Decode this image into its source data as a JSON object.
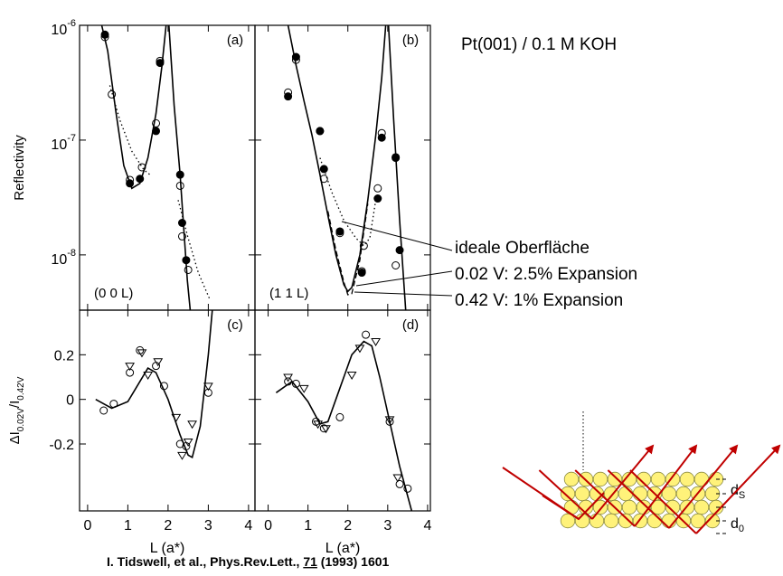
{
  "chart_data": [
    {
      "type": "scatter",
      "panel_label": "(a)",
      "annotation": "(0 0 L)",
      "ylabel": "Reflectivity",
      "yscale": "log",
      "xlim": [
        -0.2,
        4.16
      ],
      "ylim": [
        3.3e-09,
        1e-06
      ],
      "xticks": [
        0,
        1,
        2,
        3,
        4
      ],
      "xtick_labels": false,
      "yticks": [
        {
          "value": 1e-06,
          "label": "10",
          "exponent": "-6"
        },
        {
          "value": 1e-07,
          "label": "10",
          "exponent": "-7"
        },
        {
          "value": 1e-08,
          "label": "10",
          "exponent": "-8"
        }
      ],
      "series": [
        {
          "marker": "circle-open",
          "color": "#000000",
          "x": [
            0.43,
            0.6,
            1.05,
            1.35,
            1.7,
            1.8,
            2.3,
            2.35,
            2.5
          ],
          "values": [
            7.9e-07,
            2.5e-07,
            4.5e-08,
            5.8e-08,
            1.4e-07,
            4.9e-07,
            4e-08,
            1.45e-08,
            7.4e-09
          ]
        },
        {
          "marker": "circle-filled",
          "color": "#000000",
          "x": [
            0.43,
            1.05,
            1.3,
            1.7,
            1.8,
            2.3,
            2.35,
            2.45
          ],
          "values": [
            8.3e-07,
            4.2e-08,
            4.6e-08,
            1.2e-07,
            4.7e-07,
            5e-08,
            1.9e-08,
            9e-09
          ]
        },
        {
          "line": "solid",
          "color": "#000000",
          "x": [
            0.35,
            0.5,
            0.7,
            0.9,
            1.1,
            1.3,
            1.5,
            1.7,
            1.85,
            1.95,
            null,
            2.02,
            2.15,
            2.3,
            2.4,
            2.48,
            2.55
          ],
          "values": [
            1e-06,
            6e-07,
            1.8e-07,
            6e-08,
            3.8e-08,
            4.2e-08,
            7e-08,
            1.7e-07,
            4.5e-07,
            1e-06,
            null,
            1e-06,
            2e-07,
            5e-08,
            1.5e-08,
            6e-09,
            3.3e-09
          ]
        },
        {
          "line": "dotted",
          "color": "#000000",
          "x": [
            0.55,
            0.8,
            1.1,
            1.4,
            1.55,
            null,
            2.25,
            2.5,
            2.75,
            3.05
          ],
          "values": [
            3e-07,
            1.5e-07,
            8e-08,
            5.5e-08,
            5e-08,
            null,
            3e-08,
            1.4e-08,
            7e-09,
            4e-09
          ]
        }
      ]
    },
    {
      "type": "scatter",
      "panel_label": "(b)",
      "annotation": "(1 1 L)",
      "yscale": "log",
      "xlim": [
        -0.33,
        4.07
      ],
      "ylim": [
        3.3e-09,
        1e-06
      ],
      "xticks": [
        0,
        1,
        2,
        3,
        4
      ],
      "xtick_labels": false,
      "yticks": [
        1e-06,
        1e-07,
        1e-08
      ],
      "ytick_labels": false,
      "series": [
        {
          "marker": "circle-open",
          "color": "#000000",
          "x": [
            0.5,
            0.7,
            1.3,
            1.4,
            1.8,
            2.4,
            2.35,
            2.75,
            2.85,
            3.2,
            3.2
          ],
          "values": [
            2.6e-07,
            5e-07,
            1.2e-07,
            4.6e-08,
            1.55e-08,
            1.2e-08,
            7.2e-09,
            3.8e-08,
            1.15e-07,
            7e-08,
            8.1e-09
          ]
        },
        {
          "marker": "circle-filled",
          "color": "#000000",
          "x": [
            0.5,
            0.7,
            1.3,
            1.4,
            1.8,
            2.35,
            2.75,
            2.85,
            3.2,
            3.3
          ],
          "values": [
            2.4e-07,
            5.3e-07,
            1.2e-07,
            5.6e-08,
            1.6e-08,
            7e-09,
            3.1e-08,
            1.05e-07,
            7.1e-08,
            1.1e-08
          ]
        },
        {
          "line": "solid",
          "color": "#000000",
          "x": [
            0.5,
            0.7,
            0.9,
            1.1,
            1.3,
            1.5,
            1.7,
            1.9,
            2.0,
            2.1,
            2.3,
            2.5,
            2.7,
            2.85,
            2.95,
            null,
            3.02,
            3.15,
            3.3,
            3.45
          ],
          "values": [
            1e-06,
            4.5e-07,
            2.2e-07,
            1.1e-07,
            5e-08,
            2.2e-08,
            1e-08,
            5.5e-09,
            4.8e-09,
            5.2e-09,
            1e-08,
            3e-08,
            1.1e-07,
            3.5e-07,
            1e-06,
            null,
            1e-06,
            1.5e-07,
            2e-08,
            3.3e-09
          ]
        },
        {
          "line": "dashed",
          "color": "#000000",
          "x": [
            1.5,
            1.7,
            1.9,
            2.0,
            2.1,
            2.3,
            2.5
          ],
          "values": [
            2.4e-08,
            1.1e-08,
            5.8e-09,
            4.5e-09,
            4.6e-09,
            9e-09,
            2.8e-08
          ]
        },
        {
          "line": "dotted",
          "color": "#000000",
          "x": [
            1.3,
            1.6,
            1.9,
            2.2,
            2.4,
            2.55,
            2.7
          ],
          "values": [
            7e-08,
            3.5e-08,
            2e-08,
            1.4e-08,
            1.2e-08,
            1.4e-08,
            3e-08
          ]
        }
      ]
    },
    {
      "type": "scatter",
      "panel_label": "(c)",
      "xlabel": "L (a*)",
      "ylabel_parts": [
        "ΔI",
        "0.02V",
        "/I",
        "0.42V"
      ],
      "xlim": [
        -0.2,
        4.16
      ],
      "ylim": [
        -0.5,
        0.4
      ],
      "xticks": [
        0,
        1,
        2,
        3,
        4
      ],
      "yticks": [
        0.2,
        0,
        -0.2
      ],
      "series": [
        {
          "marker": "circle-open",
          "color": "#000000",
          "x": [
            0.4,
            0.65,
            1.05,
            1.3,
            1.7,
            1.9,
            2.3,
            2.45,
            3.0
          ],
          "values": [
            -0.05,
            -0.02,
            0.12,
            0.22,
            0.15,
            0.06,
            -0.2,
            -0.21,
            0.03
          ]
        },
        {
          "marker": "triangle-open",
          "color": "#000000",
          "x": [
            1.05,
            1.35,
            1.5,
            1.75,
            2.2,
            2.6,
            2.35,
            2.5,
            3.0
          ],
          "values": [
            0.15,
            0.21,
            0.11,
            0.17,
            -0.08,
            -0.11,
            -0.25,
            -0.19,
            0.06
          ]
        },
        {
          "line": "solid",
          "color": "#000000",
          "x": [
            0.2,
            0.6,
            1.0,
            1.2,
            1.5,
            1.7,
            2.0,
            2.3,
            2.5,
            2.6,
            2.8,
            3.0,
            3.1
          ],
          "values": [
            0,
            -0.04,
            -0.01,
            0.05,
            0.14,
            0.12,
            0.0,
            -0.16,
            -0.25,
            -0.26,
            -0.12,
            0.2,
            0.4
          ]
        }
      ]
    },
    {
      "type": "scatter",
      "panel_label": "(d)",
      "xlabel": "L (a*)",
      "xlim": [
        -0.33,
        4.07
      ],
      "ylim": [
        -0.5,
        0.4
      ],
      "xticks": [
        0,
        1,
        2,
        3,
        4
      ],
      "yticks": [
        0.2,
        0,
        -0.2
      ],
      "ytick_labels": false,
      "series": [
        {
          "marker": "circle-open",
          "color": "#000000",
          "x": [
            0.5,
            0.7,
            1.2,
            1.4,
            1.8,
            2.45,
            3.05,
            3.3,
            3.5
          ],
          "values": [
            0.08,
            0.07,
            -0.1,
            -0.13,
            -0.08,
            0.29,
            -0.1,
            -0.38,
            -0.4
          ]
        },
        {
          "marker": "triangle-open",
          "color": "#000000",
          "x": [
            0.5,
            0.9,
            1.25,
            1.45,
            2.1,
            2.3,
            2.7,
            3.05,
            3.25
          ],
          "values": [
            0.1,
            0.05,
            -0.11,
            -0.13,
            0.11,
            0.23,
            0.26,
            -0.09,
            -0.35
          ]
        },
        {
          "line": "solid",
          "color": "#000000",
          "x": [
            0.2,
            0.6,
            1.0,
            1.3,
            1.5,
            1.8,
            2.1,
            2.4,
            2.6,
            2.8,
            3.0,
            3.3,
            3.6
          ],
          "values": [
            0.03,
            0.08,
            -0.01,
            -0.11,
            -0.1,
            0.05,
            0.2,
            0.26,
            0.24,
            0.1,
            -0.06,
            -0.3,
            -0.5
          ]
        }
      ]
    }
  ],
  "title": "Pt(001) / 0.1 M KOH",
  "curve_labels": [
    "ideale Oberfläche",
    "0.02 V: 2.5% Expansion",
    "0.42 V: 1% Expansion"
  ],
  "citation": {
    "before": "I. Tidswell, et al., Phys.Rev.Lett., ",
    "volume": "71",
    "after": " (1993) 1601"
  },
  "diagram": {
    "surface": {
      "base": "d",
      "sub": "S"
    },
    "bulk": {
      "base": "d",
      "sub": "0"
    }
  }
}
